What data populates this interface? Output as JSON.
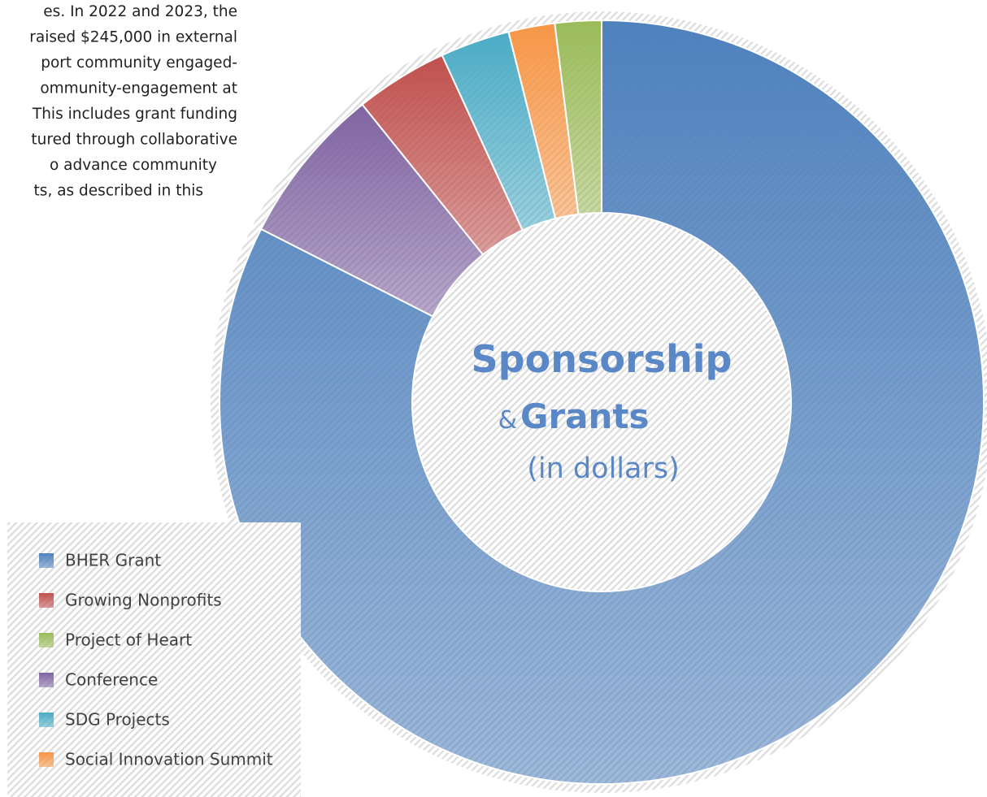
{
  "text_lines": [
    "es. In 2022 and 2023, the",
    "raised $245,000 in external",
    "port community engaged-",
    "ommunity-engagement at",
    "This includes grant funding",
    "tured through collaborative",
    "o   advance   community",
    "ts, as described in this"
  ],
  "chart_data": {
    "type": "donut",
    "title": [
      "Sponsorship",
      "&",
      "Grants"
    ],
    "subtitle": "(in dollars)",
    "categories": [
      "BHER Grant",
      "Conference",
      "Growing Nonprofits",
      "SDG Projects",
      "Social Innovation Summit",
      "Project of Heart"
    ],
    "values": [
      202100,
      16500,
      9600,
      7200,
      4800,
      4800
    ],
    "colors": [
      "#4f81bd",
      "#8064a2",
      "#c0504d",
      "#4bacc6",
      "#f79646",
      "#9bbb59"
    ],
    "legend": "bottom-left"
  }
}
